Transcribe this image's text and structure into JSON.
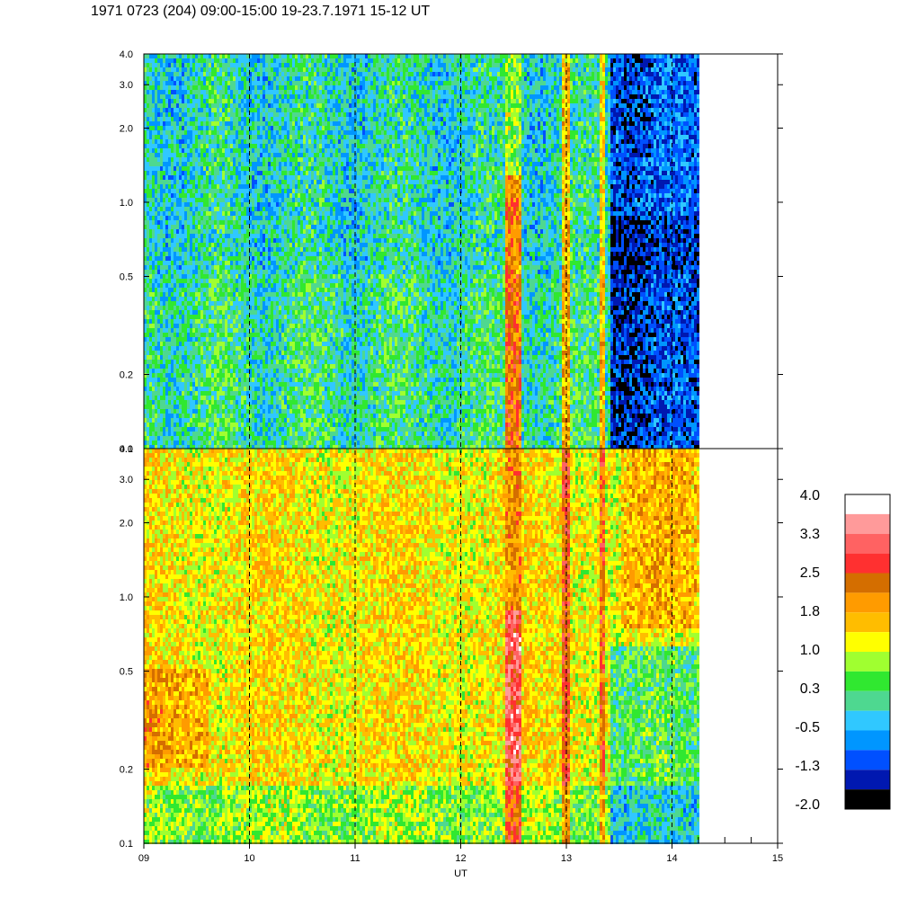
{
  "title": "1971 0723 (204) 09:00-15:00 19-23.7.1971  15-12 UT",
  "chart_data": {
    "type": "heatmap",
    "panels": [
      {
        "name": "",
        "ylim": [
          0.1,
          4.0
        ],
        "yscale": "log",
        "ytick_labels": [
          "4.0",
          "3.0",
          "2.0",
          "1.0",
          "0.5",
          "0.2",
          "0.1"
        ],
        "description_values": "dominant values 0.3 to -1.3 (green/cyan/blue), with a 1.8 band near 12.5 UT and lowest values (-1.3 to -2.0) after 13.4 UT"
      },
      {
        "name": "",
        "ylim": [
          0.1,
          4.0
        ],
        "yscale": "log",
        "ytick_labels": [
          "4.0",
          "3.0",
          "2.0",
          "1.0",
          "0.5",
          "0.2",
          "0.1"
        ],
        "description_values": "dominant values 1.0 to 1.8 (yellow/orange), a 2.5 band near 12.5 UT, lower values (0.3 to -0.5) after 13.4 UT"
      }
    ],
    "xlabel": "UT",
    "xlim": [
      9,
      15
    ],
    "data_end": 14.25,
    "x_ticks": [
      "09",
      "10",
      "11",
      "12",
      "13",
      "14",
      "15"
    ],
    "vertical_dashed_lines": [
      10,
      11,
      12,
      13,
      14
    ],
    "colorbar": {
      "labels": [
        "4.0",
        "3.3",
        "2.5",
        "1.8",
        "1.0",
        "0.3",
        "-0.5",
        "-1.3",
        "-2.0"
      ],
      "colors": [
        "#ffffff",
        "#ff9a9a",
        "#ff6262",
        "#ff3030",
        "#d46e00",
        "#ff9b00",
        "#ffbd00",
        "#ffff00",
        "#a0ff30",
        "#30e830",
        "#4ed890",
        "#30c8ff",
        "#0096ff",
        "#0050ff",
        "#0018b0",
        "#000000"
      ]
    }
  }
}
